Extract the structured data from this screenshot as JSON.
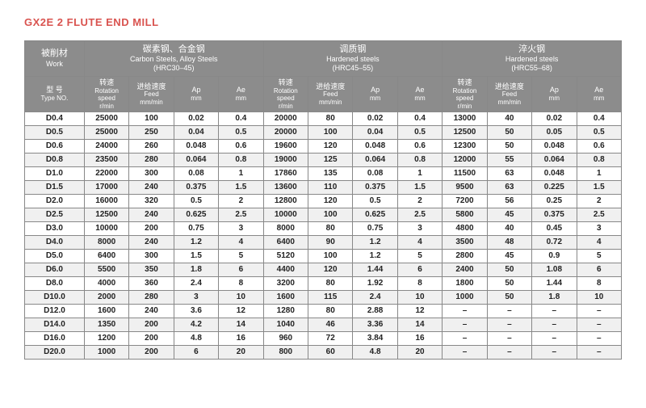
{
  "title": "GX2E 2 FLUTE END MILL",
  "colors": {
    "title": "#d9534f",
    "header_bg": "#8c8c8c",
    "header_fg": "#ffffff",
    "row_even_bg": "#f0f0f0",
    "row_odd_bg": "#ffffff",
    "border": "#888888",
    "text": "#222222"
  },
  "header": {
    "work_label_cn": "被削材",
    "work_label_en": "Work",
    "type_label_cn": "型 号",
    "type_label_en": "Type NO.",
    "groups": [
      {
        "cn": "碳素钢、合金钢",
        "en": "Carbon Steels, Alloy Steels",
        "range": "(HRC30–45)"
      },
      {
        "cn": "调质钢",
        "en": "Hardened steels",
        "range": "(HRC45–55)"
      },
      {
        "cn": "淬火钢",
        "en": "Hardened steels",
        "range": "(HRC55–68)"
      }
    ],
    "subcols": [
      {
        "cn": "转速",
        "en": "Rotation speed",
        "unit": "r/min"
      },
      {
        "cn": "进给速度",
        "en": "Feed",
        "unit": "mm/min"
      },
      {
        "cn": "Ap",
        "en": "",
        "unit": "mm"
      },
      {
        "cn": "Ae",
        "en": "",
        "unit": "mm"
      }
    ]
  },
  "rows": [
    {
      "type": "D0.4",
      "g1": [
        "25000",
        "100",
        "0.02",
        "0.4"
      ],
      "g2": [
        "20000",
        "80",
        "0.02",
        "0.4"
      ],
      "g3": [
        "13000",
        "40",
        "0.02",
        "0.4"
      ]
    },
    {
      "type": "D0.5",
      "g1": [
        "25000",
        "250",
        "0.04",
        "0.5"
      ],
      "g2": [
        "20000",
        "100",
        "0.04",
        "0.5"
      ],
      "g3": [
        "12500",
        "50",
        "0.05",
        "0.5"
      ]
    },
    {
      "type": "D0.6",
      "g1": [
        "24000",
        "260",
        "0.048",
        "0.6"
      ],
      "g2": [
        "19600",
        "120",
        "0.048",
        "0.6"
      ],
      "g3": [
        "12300",
        "50",
        "0.048",
        "0.6"
      ]
    },
    {
      "type": "D0.8",
      "g1": [
        "23500",
        "280",
        "0.064",
        "0.8"
      ],
      "g2": [
        "19000",
        "125",
        "0.064",
        "0.8"
      ],
      "g3": [
        "12000",
        "55",
        "0.064",
        "0.8"
      ]
    },
    {
      "type": "D1.0",
      "g1": [
        "22000",
        "300",
        "0.08",
        "1"
      ],
      "g2": [
        "17860",
        "135",
        "0.08",
        "1"
      ],
      "g3": [
        "11500",
        "63",
        "0.048",
        "1"
      ]
    },
    {
      "type": "D1.5",
      "g1": [
        "17000",
        "240",
        "0.375",
        "1.5"
      ],
      "g2": [
        "13600",
        "110",
        "0.375",
        "1.5"
      ],
      "g3": [
        "9500",
        "63",
        "0.225",
        "1.5"
      ]
    },
    {
      "type": "D2.0",
      "g1": [
        "16000",
        "320",
        "0.5",
        "2"
      ],
      "g2": [
        "12800",
        "120",
        "0.5",
        "2"
      ],
      "g3": [
        "7200",
        "56",
        "0.25",
        "2"
      ]
    },
    {
      "type": "D2.5",
      "g1": [
        "12500",
        "240",
        "0.625",
        "2.5"
      ],
      "g2": [
        "10000",
        "100",
        "0.625",
        "2.5"
      ],
      "g3": [
        "5800",
        "45",
        "0.375",
        "2.5"
      ]
    },
    {
      "type": "D3.0",
      "g1": [
        "10000",
        "200",
        "0.75",
        "3"
      ],
      "g2": [
        "8000",
        "80",
        "0.75",
        "3"
      ],
      "g3": [
        "4800",
        "40",
        "0.45",
        "3"
      ]
    },
    {
      "type": "D4.0",
      "g1": [
        "8000",
        "240",
        "1.2",
        "4"
      ],
      "g2": [
        "6400",
        "90",
        "1.2",
        "4"
      ],
      "g3": [
        "3500",
        "48",
        "0.72",
        "4"
      ]
    },
    {
      "type": "D5.0",
      "g1": [
        "6400",
        "300",
        "1.5",
        "5"
      ],
      "g2": [
        "5120",
        "100",
        "1.2",
        "5"
      ],
      "g3": [
        "2800",
        "45",
        "0.9",
        "5"
      ]
    },
    {
      "type": "D6.0",
      "g1": [
        "5500",
        "350",
        "1.8",
        "6"
      ],
      "g2": [
        "4400",
        "120",
        "1.44",
        "6"
      ],
      "g3": [
        "2400",
        "50",
        "1.08",
        "6"
      ]
    },
    {
      "type": "D8.0",
      "g1": [
        "4000",
        "360",
        "2.4",
        "8"
      ],
      "g2": [
        "3200",
        "80",
        "1.92",
        "8"
      ],
      "g3": [
        "1800",
        "50",
        "1.44",
        "8"
      ]
    },
    {
      "type": "D10.0",
      "g1": [
        "2000",
        "280",
        "3",
        "10"
      ],
      "g2": [
        "1600",
        "115",
        "2.4",
        "10"
      ],
      "g3": [
        "1000",
        "50",
        "1.8",
        "10"
      ]
    },
    {
      "type": "D12.0",
      "g1": [
        "1600",
        "240",
        "3.6",
        "12"
      ],
      "g2": [
        "1280",
        "80",
        "2.88",
        "12"
      ],
      "g3": [
        "–",
        "–",
        "–",
        "–"
      ]
    },
    {
      "type": "D14.0",
      "g1": [
        "1350",
        "200",
        "4.2",
        "14"
      ],
      "g2": [
        "1040",
        "46",
        "3.36",
        "14"
      ],
      "g3": [
        "–",
        "–",
        "–",
        "–"
      ]
    },
    {
      "type": "D16.0",
      "g1": [
        "1200",
        "200",
        "4.8",
        "16"
      ],
      "g2": [
        "960",
        "72",
        "3.84",
        "16"
      ],
      "g3": [
        "–",
        "–",
        "–",
        "–"
      ]
    },
    {
      "type": "D20.0",
      "g1": [
        "1000",
        "200",
        "6",
        "20"
      ],
      "g2": [
        "800",
        "60",
        "4.8",
        "20"
      ],
      "g3": [
        "–",
        "–",
        "–",
        "–"
      ]
    }
  ]
}
